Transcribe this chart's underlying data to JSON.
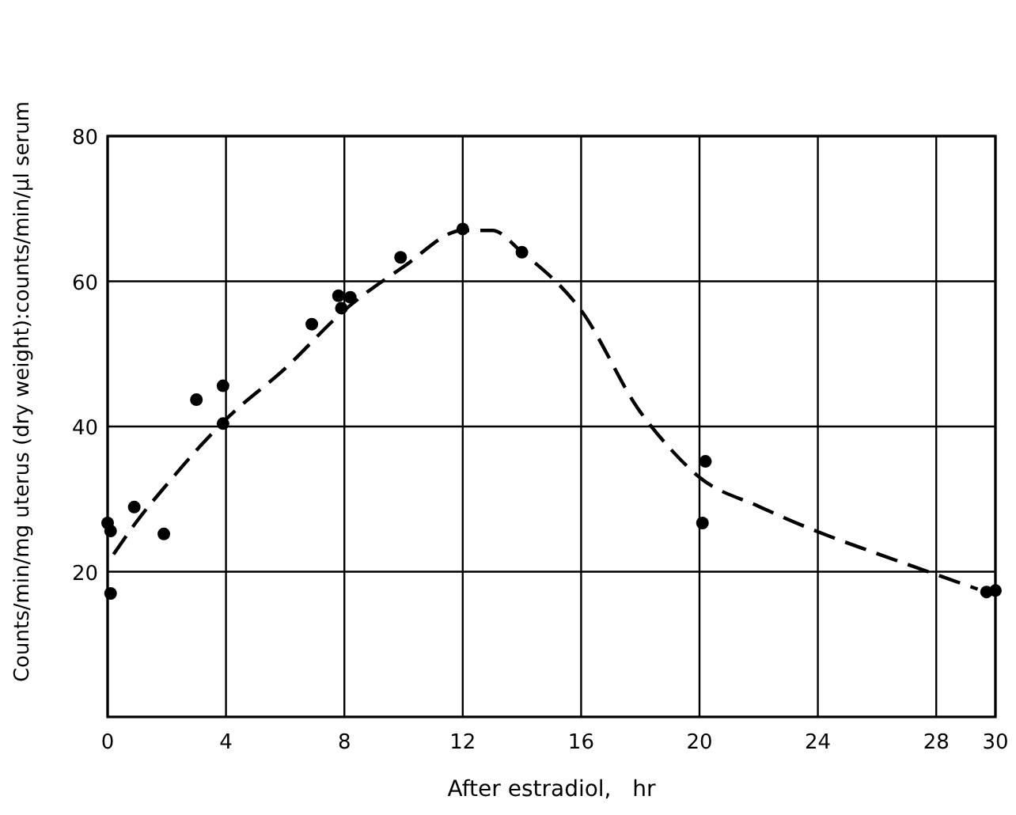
{
  "chart_data": {
    "type": "scatter",
    "xlabel": "After estradiol,   hr",
    "ylabel": "Counts/min/mg uterus (dry weight):counts/min/μl serum",
    "xlim": [
      0,
      30
    ],
    "ylim": [
      0,
      80
    ],
    "xticks": [
      0,
      4,
      8,
      12,
      16,
      20,
      24,
      28,
      30
    ],
    "yticks": [
      20,
      40,
      60,
      80
    ],
    "grid": true,
    "series": [
      {
        "color": "#000000",
        "marker": "circle",
        "x": [
          0,
          0.1,
          0.1,
          0.9,
          1.9,
          3,
          3.9,
          3.9,
          6.9,
          7.8,
          8.2,
          7.9,
          9.9,
          12,
          14,
          20.2,
          20.1,
          29.7,
          30
        ],
        "values": [
          26.7,
          25.6,
          17,
          28.9,
          25.2,
          43.7,
          45.6,
          40.4,
          54.1,
          58,
          57.8,
          56.3,
          63.3,
          67.2,
          64,
          35.2,
          26.7,
          17.2,
          17.4
        ]
      },
      {
        "type": "line",
        "color": "#000000",
        "marker": "none",
        "line_style": "dashed",
        "x": [
          0.2,
          1,
          2,
          4,
          6,
          8,
          10,
          12,
          13,
          14,
          16,
          18,
          19,
          20,
          22,
          24,
          26,
          28,
          29.4
        ],
        "values": [
          22.4,
          27,
          32,
          41,
          48,
          56,
          62,
          67,
          67,
          64,
          56,
          42,
          37,
          33,
          29,
          25.5,
          22.5,
          19.6,
          17.6
        ]
      }
    ]
  }
}
